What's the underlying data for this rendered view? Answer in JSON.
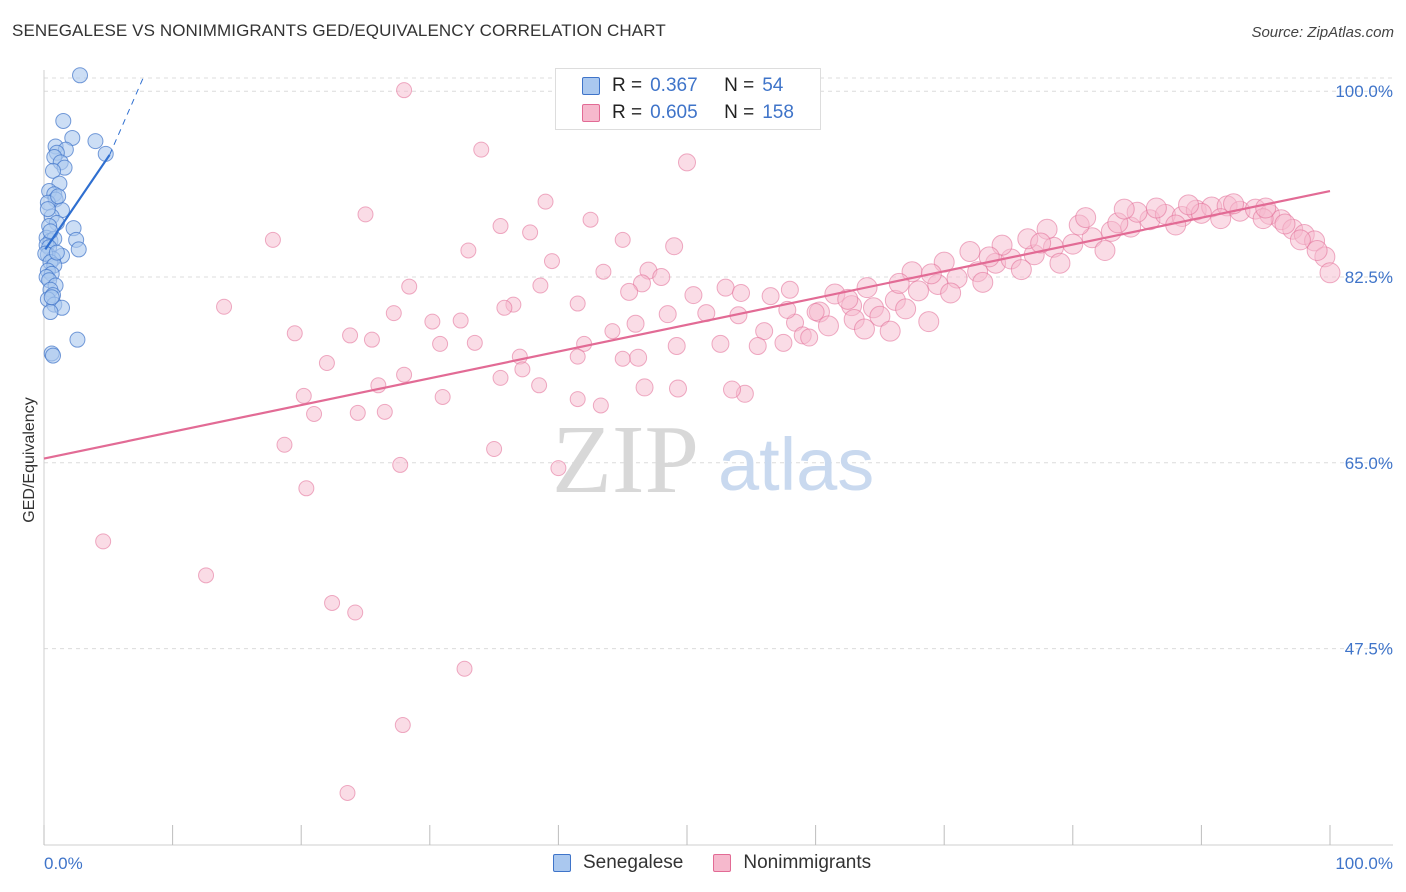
{
  "header": {
    "title": "SENEGALESE VS NONIMMIGRANTS GED/EQUIVALENCY CORRELATION CHART",
    "source": "Source: ZipAtlas.com"
  },
  "legend": {
    "r_label": "R =",
    "n_label": "N =",
    "series": [
      {
        "r": "0.367",
        "n": "54"
      },
      {
        "r": "0.605",
        "n": "158"
      }
    ]
  },
  "bottom_legend": [
    "Senegalese",
    "Nonimmigrants"
  ],
  "watermark": {
    "zip": "ZIP",
    "atlas": "atlas"
  },
  "colors": {
    "blue": "#3f74c9",
    "blue_fill": "#aac8ef",
    "blue_line": "#2f6fd0",
    "pink": "#e26b95",
    "pink_fill": "#f6b9cd",
    "grid": "#dcdcdc"
  },
  "chart_data": {
    "type": "scatter",
    "title": "SENEGALESE VS NONIMMIGRANTS GED/EQUIVALENCY CORRELATION CHART",
    "xlabel": "",
    "ylabel": "GED/Equivalency",
    "xlim": [
      0,
      100
    ],
    "ylim": [
      29,
      102
    ],
    "x_tick_labels": [
      "0.0%",
      "100.0%"
    ],
    "y_ticks": [
      47.5,
      65.0,
      82.5,
      100.0
    ],
    "y_tick_labels": [
      "47.5%",
      "65.0%",
      "82.5%",
      "100.0%"
    ],
    "grid": true,
    "legend_placement": "top-center",
    "series": [
      {
        "name": "Senegalese",
        "r": 0.367,
        "n": 54,
        "trend": {
          "x": [
            0.1,
            5.1
          ],
          "y": [
            85.1,
            94.0
          ]
        },
        "trend_extension": {
          "x": [
            5.1,
            7.8
          ],
          "y": [
            94.0,
            101.5
          ]
        },
        "points": [
          [
            2.8,
            101.5
          ],
          [
            1.5,
            97.2
          ],
          [
            2.2,
            95.6
          ],
          [
            4.0,
            95.3
          ],
          [
            0.9,
            94.8
          ],
          [
            1.7,
            94.5
          ],
          [
            1.0,
            94.2
          ],
          [
            4.8,
            94.1
          ],
          [
            0.8,
            93.8
          ],
          [
            1.3,
            93.3
          ],
          [
            1.6,
            92.8
          ],
          [
            0.7,
            92.5
          ],
          [
            1.2,
            91.3
          ],
          [
            0.4,
            90.6
          ],
          [
            0.8,
            90.3
          ],
          [
            0.9,
            89.8
          ],
          [
            0.3,
            89.5
          ],
          [
            1.4,
            88.8
          ],
          [
            0.6,
            88.2
          ],
          [
            1.0,
            87.6
          ],
          [
            2.3,
            87.1
          ],
          [
            0.4,
            87.3
          ],
          [
            0.2,
            86.2
          ],
          [
            0.5,
            85.9
          ],
          [
            2.5,
            86.0
          ],
          [
            0.8,
            86.1
          ],
          [
            0.2,
            85.5
          ],
          [
            0.4,
            85.3
          ],
          [
            0.3,
            84.6
          ],
          [
            1.4,
            84.5
          ],
          [
            2.7,
            85.1
          ],
          [
            0.7,
            84.2
          ],
          [
            0.1,
            84.7
          ],
          [
            0.5,
            83.9
          ],
          [
            0.8,
            83.6
          ],
          [
            0.3,
            83.1
          ],
          [
            0.6,
            82.8
          ],
          [
            0.2,
            82.5
          ],
          [
            0.4,
            82.2
          ],
          [
            0.9,
            81.7
          ],
          [
            0.5,
            81.3
          ],
          [
            0.7,
            80.8
          ],
          [
            0.3,
            80.4
          ],
          [
            0.8,
            79.9
          ],
          [
            1.4,
            79.6
          ],
          [
            0.5,
            79.2
          ],
          [
            2.6,
            76.6
          ],
          [
            0.6,
            75.3
          ],
          [
            0.7,
            75.1
          ],
          [
            1.0,
            84.8
          ],
          [
            0.6,
            80.6
          ],
          [
            0.3,
            88.9
          ],
          [
            1.1,
            90.1
          ],
          [
            0.5,
            86.8
          ]
        ]
      },
      {
        "name": "Nonimmigrants",
        "r": 0.605,
        "n": 158,
        "trend": {
          "x": [
            0,
            100
          ],
          "y": [
            65.4,
            90.6
          ]
        },
        "points": [
          [
            28.0,
            100.1
          ],
          [
            34.0,
            94.5
          ],
          [
            50.0,
            93.3
          ],
          [
            39.0,
            89.6
          ],
          [
            25.0,
            88.4
          ],
          [
            42.5,
            87.9
          ],
          [
            35.5,
            87.3
          ],
          [
            37.8,
            86.7
          ],
          [
            45.0,
            86.0
          ],
          [
            17.8,
            86.0
          ],
          [
            49.0,
            85.4
          ],
          [
            33.0,
            85.0
          ],
          [
            39.5,
            84.0
          ],
          [
            47.0,
            83.1
          ],
          [
            43.5,
            83.0
          ],
          [
            48.0,
            82.5
          ],
          [
            46.5,
            81.9
          ],
          [
            38.6,
            81.7
          ],
          [
            28.4,
            81.6
          ],
          [
            53.0,
            81.5
          ],
          [
            58.0,
            81.3
          ],
          [
            45.5,
            81.1
          ],
          [
            54.2,
            81.0
          ],
          [
            50.5,
            80.8
          ],
          [
            56.5,
            80.7
          ],
          [
            14.0,
            79.7
          ],
          [
            36.5,
            79.9
          ],
          [
            35.8,
            79.6
          ],
          [
            41.5,
            80.0
          ],
          [
            27.2,
            79.1
          ],
          [
            32.4,
            78.4
          ],
          [
            30.2,
            78.3
          ],
          [
            46.0,
            78.1
          ],
          [
            44.2,
            77.4
          ],
          [
            19.5,
            77.2
          ],
          [
            23.8,
            77.0
          ],
          [
            25.5,
            76.6
          ],
          [
            33.5,
            76.3
          ],
          [
            30.8,
            76.2
          ],
          [
            42.0,
            76.2
          ],
          [
            52.6,
            76.2
          ],
          [
            49.2,
            76.0
          ],
          [
            41.5,
            75.0
          ],
          [
            46.2,
            74.9
          ],
          [
            45.0,
            74.8
          ],
          [
            37.0,
            75.0
          ],
          [
            22.0,
            74.4
          ],
          [
            28.0,
            73.3
          ],
          [
            35.5,
            73.0
          ],
          [
            26.0,
            72.3
          ],
          [
            38.5,
            72.3
          ],
          [
            46.7,
            72.1
          ],
          [
            49.3,
            72.0
          ],
          [
            54.5,
            71.5
          ],
          [
            31.0,
            71.2
          ],
          [
            41.5,
            71.0
          ],
          [
            53.5,
            71.9
          ],
          [
            20.2,
            71.3
          ],
          [
            24.4,
            69.7
          ],
          [
            26.5,
            69.8
          ],
          [
            21.0,
            69.6
          ],
          [
            18.7,
            66.7
          ],
          [
            35.0,
            66.3
          ],
          [
            27.7,
            64.8
          ],
          [
            20.4,
            62.6
          ],
          [
            4.6,
            57.6
          ],
          [
            12.6,
            54.4
          ],
          [
            22.4,
            51.8
          ],
          [
            24.2,
            50.9
          ],
          [
            32.7,
            45.6
          ],
          [
            27.9,
            40.3
          ],
          [
            23.6,
            33.9
          ],
          [
            40.0,
            64.5
          ],
          [
            37.2,
            73.8
          ],
          [
            43.3,
            70.4
          ],
          [
            56.0,
            77.4
          ],
          [
            58.4,
            78.2
          ],
          [
            60.3,
            79.2
          ],
          [
            62.8,
            79.8
          ],
          [
            64.5,
            79.6
          ],
          [
            66.2,
            80.3
          ],
          [
            68.0,
            81.2
          ],
          [
            69.5,
            81.8
          ],
          [
            71.0,
            82.4
          ],
          [
            72.6,
            83.0
          ],
          [
            74.0,
            83.8
          ],
          [
            75.2,
            84.2
          ],
          [
            77.0,
            84.6
          ],
          [
            78.5,
            85.3
          ],
          [
            80.0,
            85.6
          ],
          [
            81.5,
            86.2
          ],
          [
            83.0,
            86.8
          ],
          [
            84.5,
            87.2
          ],
          [
            86.0,
            87.9
          ],
          [
            87.2,
            88.4
          ],
          [
            88.5,
            88.2
          ],
          [
            89.6,
            88.8
          ],
          [
            90.8,
            89.1
          ],
          [
            92.0,
            89.2
          ],
          [
            93.0,
            88.7
          ],
          [
            94.2,
            88.9
          ],
          [
            95.3,
            88.4
          ],
          [
            96.2,
            87.9
          ],
          [
            97.1,
            87.0
          ],
          [
            98.0,
            86.5
          ],
          [
            98.8,
            85.9
          ],
          [
            99.6,
            84.4
          ],
          [
            100.0,
            82.9
          ],
          [
            82.5,
            85.0
          ],
          [
            79.0,
            83.8
          ],
          [
            76.0,
            83.2
          ],
          [
            73.0,
            82.0
          ],
          [
            70.5,
            81.0
          ],
          [
            67.0,
            79.5
          ],
          [
            65.0,
            78.8
          ],
          [
            63.0,
            78.5
          ],
          [
            61.0,
            77.9
          ],
          [
            59.0,
            77.0
          ],
          [
            57.5,
            76.3
          ],
          [
            55.5,
            76.0
          ],
          [
            61.5,
            80.9
          ],
          [
            64.0,
            81.5
          ],
          [
            67.5,
            83.0
          ],
          [
            70.0,
            83.9
          ],
          [
            72.0,
            84.9
          ],
          [
            74.5,
            85.5
          ],
          [
            76.5,
            86.1
          ],
          [
            78.0,
            87.0
          ],
          [
            80.5,
            87.4
          ],
          [
            83.5,
            87.6
          ],
          [
            85.0,
            88.6
          ],
          [
            88.0,
            87.4
          ],
          [
            90.0,
            88.5
          ],
          [
            91.5,
            88.0
          ],
          [
            94.8,
            88.0
          ],
          [
            96.5,
            87.5
          ],
          [
            97.7,
            86.0
          ],
          [
            99.0,
            85.0
          ],
          [
            84.0,
            88.9
          ],
          [
            86.5,
            89.0
          ],
          [
            89.0,
            89.3
          ],
          [
            92.5,
            89.4
          ],
          [
            95.0,
            89.0
          ],
          [
            81.0,
            88.1
          ],
          [
            77.5,
            85.7
          ],
          [
            73.5,
            84.4
          ],
          [
            69.0,
            82.8
          ],
          [
            66.5,
            81.9
          ],
          [
            62.5,
            80.4
          ],
          [
            60.0,
            79.2
          ],
          [
            57.8,
            79.4
          ],
          [
            54.0,
            78.9
          ],
          [
            51.5,
            79.1
          ],
          [
            48.5,
            79.0
          ],
          [
            63.8,
            77.6
          ],
          [
            68.8,
            78.3
          ],
          [
            59.5,
            76.8
          ],
          [
            65.8,
            77.4
          ]
        ]
      }
    ]
  }
}
